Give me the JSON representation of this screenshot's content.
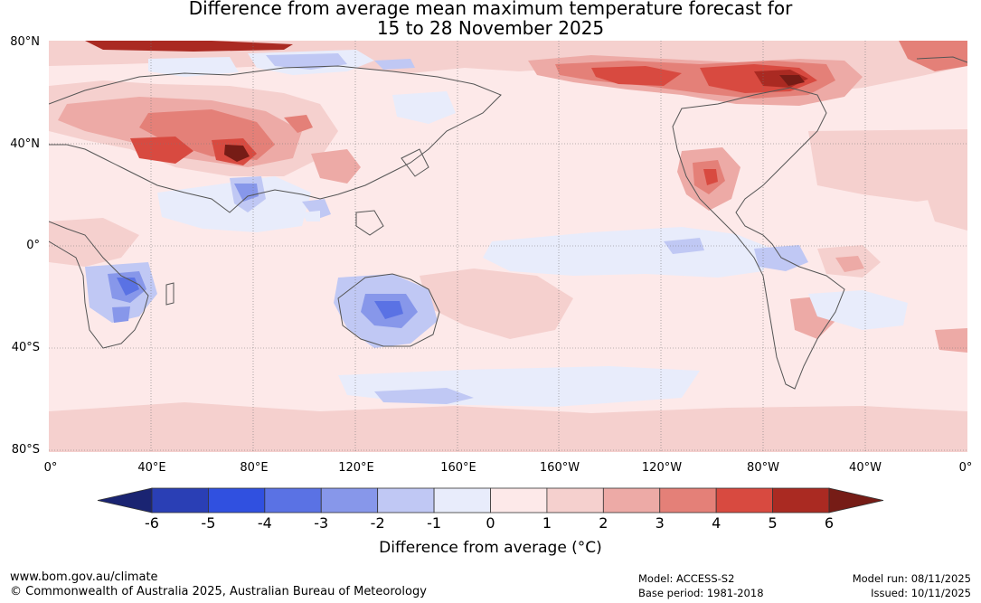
{
  "title": {
    "line1": "Difference from average mean maximum temperature forecast for",
    "line2": "15 to 28 November 2025"
  },
  "axes": {
    "lat_labels": [
      "80°N",
      "40°N",
      "0°",
      "40°S",
      "80°S"
    ],
    "lon_labels": [
      "0°",
      "40°E",
      "80°E",
      "120°E",
      "160°E",
      "160°W",
      "120°W",
      "80°W",
      "40°W",
      "0°"
    ]
  },
  "colorbar": {
    "ticks": [
      "-6",
      "-5",
      "-4",
      "-3",
      "-2",
      "-1",
      "0",
      "1",
      "2",
      "3",
      "4",
      "5",
      "6"
    ],
    "colors": [
      "#1a2472",
      "#2a3fb5",
      "#3050e0",
      "#5a72e4",
      "#8797ea",
      "#c0c8f4",
      "#e8ecfb",
      "#fde9e9",
      "#f5d0ce",
      "#edaaa6",
      "#e48078",
      "#d84a40",
      "#aa2a22",
      "#761c16"
    ],
    "label": "Difference from average (°C)"
  },
  "colors": {
    "neutral_ocean": "#fde9e9",
    "coast": "#555555",
    "grid": "#777777"
  },
  "footer": {
    "url": "www.bom.gov.au/climate",
    "copyright": "© Commonwealth of Australia 2025, Australian Bureau of Meteorology",
    "model": "Model: ACCESS-S2",
    "base_period": "Base period: 1981-2018",
    "model_run": "Model run: 08/11/2025",
    "issued": "Issued: 10/11/2025"
  }
}
